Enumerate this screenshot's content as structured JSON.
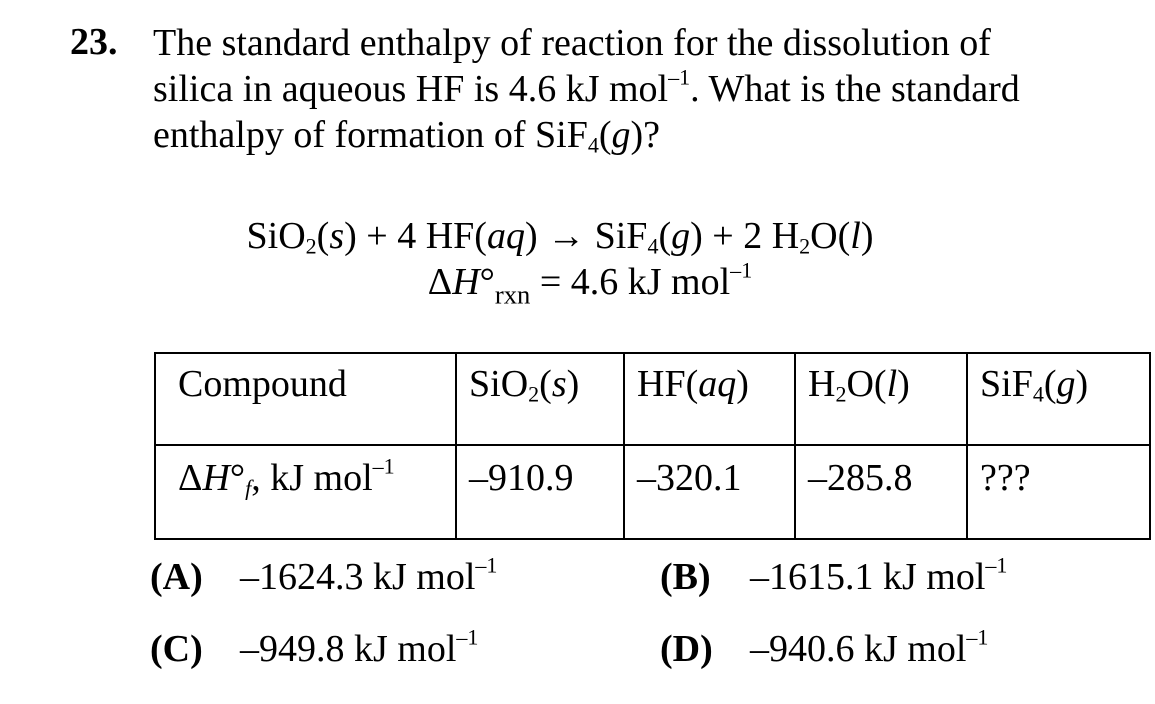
{
  "question": {
    "number": "23.",
    "line1": "The standard enthalpy of reaction for the dissolution of",
    "line2_a": "silica in aqueous HF is 4.6 kJ mol",
    "line2_sup": "–1",
    "line2_b": ".  What is the standard",
    "line3": "enthalpy of formation of SiF4(g)?"
  },
  "reaction": {
    "equation": "SiO2(s) + 4 HF(aq) → SiF4(g) + 2 H2O(l)",
    "enthalpy": "ΔH°rxn = 4.6 kJ mol–1"
  },
  "table": {
    "header_label": "Compound",
    "compounds": [
      "SiO2(s)",
      "HF(aq)",
      "H2O(l)",
      "SiF4(g)"
    ],
    "row_label": "ΔH°f, kJ mol–1",
    "values": [
      "–910.9",
      "–320.1",
      "–285.8",
      "???"
    ]
  },
  "choices": [
    {
      "label": "(A)",
      "value": "–1624.3 kJ mol",
      "sup": "–1"
    },
    {
      "label": "(B)",
      "value": "–1615.1 kJ mol",
      "sup": "–1"
    },
    {
      "label": "(C)",
      "value": "–949.8 kJ mol",
      "sup": "–1"
    },
    {
      "label": "(D)",
      "value": "–940.6 kJ mol",
      "sup": "–1"
    }
  ]
}
